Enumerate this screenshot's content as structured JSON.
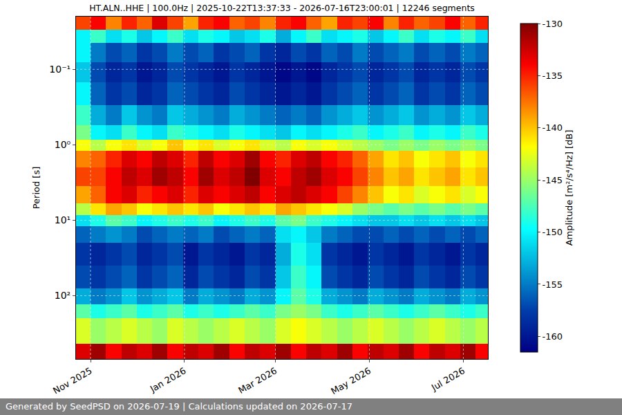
{
  "chart_data": {
    "type": "heatmap",
    "title": "HT.ALN..HHE | 100.0Hz | 2025-10-22T13:37:33 - 2026-07-16T23:00:01 | 12246 segments",
    "footer": "Generated by SeedPSD on 2026-07-19 | Calculations updated on 2026-07-17",
    "y_label": "Period [s]",
    "colorbar_label": "Amplitude [m²/s⁴/Hz] [dB]",
    "log": "y",
    "grid": true,
    "xlim": [
      "2025-10-22 13:37:33",
      "2026-07-16 23:00:01"
    ],
    "xticks": [
      {
        "value": "2025-11-01",
        "label": "Nov 2025"
      },
      {
        "value": "2026-01-01",
        "label": "Jan 2026"
      },
      {
        "value": "2026-03-01",
        "label": "Mar 2026"
      },
      {
        "value": "2026-05-01",
        "label": "May 2026"
      },
      {
        "value": "2026-07-01",
        "label": "Jul 2026"
      }
    ],
    "ylim": [
      690,
      0.02
    ],
    "yticks": [
      {
        "value": 0.1,
        "label": "10⁻¹"
      },
      {
        "value": 1,
        "label": "10⁰"
      },
      {
        "value": 10,
        "label": "10¹"
      },
      {
        "value": 100,
        "label": "10²"
      }
    ],
    "zlim": [
      -161.5,
      -130
    ],
    "zticks": [
      -130,
      -135,
      -140,
      -145,
      -150,
      -155,
      -160
    ],
    "x_edges": [
      "2025-10-22 13:37:33",
      "2025-11-01",
      "2025-11-11",
      "2025-11-21",
      "2025-12-01",
      "2025-12-11",
      "2025-12-21",
      "2025-12-31",
      "2026-01-10",
      "2026-01-20",
      "2026-01-30",
      "2026-02-09",
      "2026-02-19",
      "2026-03-01",
      "2026-03-11",
      "2026-03-21",
      "2026-03-31",
      "2026-04-10",
      "2026-04-20",
      "2026-04-30",
      "2026-05-10",
      "2026-05-20",
      "2026-05-30",
      "2026-06-09",
      "2026-06-19",
      "2026-06-29",
      "2026-07-09",
      "2026-07-16 23:00:01"
    ],
    "y_edges": [
      0.02,
      0.03,
      0.045,
      0.08,
      0.15,
      0.3,
      0.55,
      0.85,
      1.2,
      2,
      3.5,
      6,
      8.5,
      12,
      20,
      40,
      80,
      130,
      200,
      430,
      690
    ],
    "cells": [
      [
        -136,
        -134,
        -138,
        -135,
        -137,
        -133,
        -136,
        -139,
        -135,
        -134,
        -137,
        -136,
        -138,
        -135,
        -134,
        -137,
        -139,
        -135,
        -136,
        -134,
        -138,
        -135,
        -137,
        -136,
        -134,
        -137,
        -135
      ],
      [
        -150,
        -148,
        -151,
        -149,
        -152,
        -150,
        -148,
        -151,
        -149,
        -150,
        -152,
        -151,
        -149,
        -153,
        -150,
        -148,
        -151,
        -150,
        -149,
        -152,
        -150,
        -148,
        -151,
        -149,
        -150,
        -148,
        -151
      ],
      [
        -150,
        -155,
        -157,
        -156,
        -158,
        -157,
        -155,
        -157,
        -156,
        -158,
        -157,
        -156,
        -158,
        -159,
        -157,
        -158,
        -156,
        -157,
        -155,
        -157,
        -156,
        -155,
        -157,
        -156,
        -157,
        -155,
        -156
      ],
      [
        -152,
        -157,
        -159,
        -158,
        -160,
        -159,
        -157,
        -158,
        -159,
        -160,
        -158,
        -159,
        -160,
        -161,
        -160,
        -161,
        -159,
        -158,
        -157,
        -159,
        -158,
        -157,
        -159,
        -158,
        -159,
        -157,
        -158
      ],
      [
        -150,
        -156,
        -158,
        -157,
        -159,
        -158,
        -156,
        -157,
        -158,
        -159,
        -157,
        -158,
        -159,
        -160,
        -159,
        -160,
        -158,
        -157,
        -156,
        -158,
        -157,
        -156,
        -158,
        -157,
        -158,
        -156,
        -157
      ],
      [
        -148,
        -153,
        -155,
        -152,
        -154,
        -155,
        -152,
        -153,
        -154,
        -155,
        -153,
        -154,
        -155,
        -156,
        -155,
        -156,
        -154,
        -153,
        -152,
        -154,
        -153,
        -152,
        -154,
        -153,
        -154,
        -152,
        -153
      ],
      [
        -146,
        -150,
        -151,
        -148,
        -150,
        -151,
        -148,
        -149,
        -150,
        -151,
        -149,
        -150,
        -151,
        -152,
        -150,
        -151,
        -150,
        -149,
        -148,
        -150,
        -149,
        -148,
        -150,
        -149,
        -150,
        -148,
        -149
      ],
      [
        -142,
        -144,
        -142,
        -141,
        -143,
        -142,
        -140,
        -142,
        -141,
        -143,
        -142,
        -141,
        -143,
        -144,
        -142,
        -143,
        -142,
        -143,
        -144,
        -145,
        -146,
        -145,
        -146,
        -145,
        -146,
        -145,
        -146
      ],
      [
        -138,
        -137,
        -135,
        -133,
        -134,
        -132,
        -133,
        -135,
        -132,
        -134,
        -133,
        -131,
        -134,
        -135,
        -133,
        -132,
        -134,
        -135,
        -137,
        -139,
        -141,
        -140,
        -142,
        -141,
        -140,
        -142,
        -141
      ],
      [
        -136,
        -136,
        -134,
        -132,
        -133,
        -131,
        -132,
        -134,
        -131,
        -133,
        -132,
        -130,
        -133,
        -134,
        -132,
        -131,
        -133,
        -134,
        -136,
        -138,
        -140,
        -139,
        -141,
        -140,
        -139,
        -141,
        -140
      ],
      [
        -139,
        -137,
        -134,
        -133,
        -135,
        -134,
        -133,
        -135,
        -133,
        -134,
        -133,
        -132,
        -134,
        -133,
        -132,
        -133,
        -134,
        -136,
        -138,
        -140,
        -142,
        -141,
        -143,
        -142,
        -141,
        -143,
        -142
      ],
      [
        -144,
        -141,
        -139,
        -140,
        -142,
        -141,
        -140,
        -141,
        -140,
        -142,
        -141,
        -140,
        -141,
        -139,
        -140,
        -141,
        -142,
        -143,
        -145,
        -146,
        -147,
        -146,
        -147,
        -146,
        -147,
        -146,
        -147
      ],
      [
        -151,
        -149,
        -147,
        -148,
        -150,
        -149,
        -148,
        -149,
        -148,
        -150,
        -149,
        -148,
        -149,
        -147,
        -146,
        -148,
        -149,
        -150,
        -151,
        -152,
        -152,
        -151,
        -152,
        -151,
        -152,
        -151,
        -152
      ],
      [
        -156,
        -155,
        -154,
        -155,
        -157,
        -156,
        -155,
        -156,
        -155,
        -157,
        -156,
        -155,
        -156,
        -151,
        -150,
        -152,
        -155,
        -156,
        -157,
        -157,
        -156,
        -157,
        -156,
        -157,
        -156,
        -157,
        -156
      ],
      [
        -158,
        -159,
        -158,
        -157,
        -159,
        -158,
        -157,
        -160,
        -158,
        -159,
        -160,
        -158,
        -159,
        -153,
        -149,
        -151,
        -158,
        -159,
        -160,
        -158,
        -159,
        -160,
        -158,
        -159,
        -160,
        -158,
        -159
      ],
      [
        -157,
        -158,
        -157,
        -156,
        -158,
        -157,
        -156,
        -159,
        -157,
        -158,
        -159,
        -157,
        -158,
        -152,
        -148,
        -150,
        -157,
        -158,
        -159,
        -157,
        -158,
        -159,
        -157,
        -158,
        -159,
        -157,
        -158
      ],
      [
        -153,
        -155,
        -154,
        -152,
        -154,
        -153,
        -152,
        -155,
        -153,
        -154,
        -155,
        -153,
        -154,
        -150,
        -147,
        -149,
        -153,
        -154,
        -155,
        -153,
        -154,
        -155,
        -153,
        -154,
        -155,
        -153,
        -154
      ],
      [
        -147,
        -149,
        -148,
        -147,
        -149,
        -148,
        -147,
        -149,
        -148,
        -149,
        -148,
        -147,
        -148,
        -146,
        -145,
        -146,
        -148,
        -149,
        -148,
        -147,
        -148,
        -149,
        -148,
        -147,
        -148,
        -149,
        -148
      ],
      [
        -143,
        -145,
        -144,
        -143,
        -144,
        -145,
        -143,
        -144,
        -145,
        -144,
        -143,
        -144,
        -145,
        -143,
        -142,
        -143,
        -144,
        -145,
        -144,
        -143,
        -144,
        -145,
        -144,
        -143,
        -144,
        -145,
        -144
      ],
      [
        -133,
        -131,
        -134,
        -132,
        -133,
        -131,
        -134,
        -132,
        -133,
        -131,
        -134,
        -132,
        -133,
        -131,
        -134,
        -132,
        -133,
        -131,
        -134,
        -132,
        -133,
        -131,
        -134,
        -132,
        -133,
        -131,
        -134
      ]
    ]
  }
}
